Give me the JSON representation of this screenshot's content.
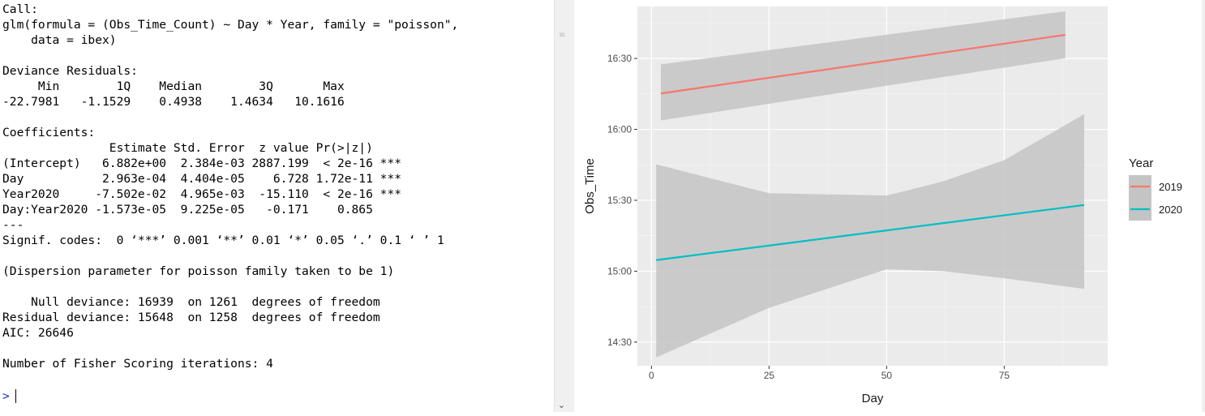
{
  "console": {
    "lines": [
      "Call:",
      "glm(formula = (Obs_Time_Count) ~ Day * Year, family = \"poisson\",",
      "    data = ibex)",
      "",
      "Deviance Residuals:",
      "     Min        1Q    Median        3Q       Max",
      "-22.7981   -1.1529    0.4938    1.4634   10.1616",
      "",
      "Coefficients:",
      "               Estimate Std. Error  z value Pr(>|z|)",
      "(Intercept)   6.882e+00  2.384e-03 2887.199  < 2e-16 ***",
      "Day           2.963e-04  4.404e-05    6.728 1.72e-11 ***",
      "Year2020     -7.502e-02  4.965e-03  -15.110  < 2e-16 ***",
      "Day:Year2020 -1.573e-05  9.225e-05   -0.171    0.865",
      "---",
      "Signif. codes:  0 ‘***’ 0.001 ‘**’ 0.01 ‘*’ 0.05 ‘.’ 0.1 ‘ ’ 1",
      "",
      "(Dispersion parameter for poisson family taken to be 1)",
      "",
      "    Null deviance: 16939  on 1261  degrees of freedom",
      "Residual deviance: 15648  on 1258  degrees of freedom",
      "AIC: 26646",
      "",
      "Number of Fisher Scoring iterations: 4"
    ],
    "prompt": ">"
  },
  "icons": {
    "scroll_down": "chevron-down-icon",
    "scroll_down_glyph": "⌄",
    "grip_glyph": "≡"
  },
  "colors": {
    "panel_bg": "#ebebeb",
    "grid_major": "#ffffff",
    "grid_minor": "#f5f5f5",
    "ribbon": "#c4c4c4",
    "series_2019": "#f8766d",
    "series_2020": "#00bfc4",
    "axis_text": "#4d4d4d",
    "title_text": "#1a1a1a"
  },
  "chart_data": {
    "type": "line",
    "title": "",
    "xlabel": "Day",
    "ylabel": "Obs_Time",
    "xlim": [
      -3,
      97
    ],
    "ylim_minutes": [
      860,
      1012
    ],
    "x_ticks": [
      0,
      25,
      50,
      75
    ],
    "y_ticks": [
      {
        "minutes": 870,
        "label": "14:30"
      },
      {
        "minutes": 900,
        "label": "15:00"
      },
      {
        "minutes": 930,
        "label": "15:30"
      },
      {
        "minutes": 960,
        "label": "16:00"
      },
      {
        "minutes": 990,
        "label": "16:30"
      }
    ],
    "legend": {
      "title": "Year",
      "position": "right"
    },
    "series": [
      {
        "name": "2019",
        "color": "#f8766d",
        "x": [
          2,
          88
        ],
        "fit": [
          975.2,
          1000.0
        ],
        "lower": [
          963.8,
          990.1
        ],
        "upper": [
          987.5,
          1010.0
        ]
      },
      {
        "name": "2020",
        "color": "#00bfc4",
        "x": [
          1,
          92
        ],
        "fit": [
          904.7,
          928.0
        ],
        "lower": [
          863.5,
          892.5
        ],
        "upper": [
          945.2,
          966.4
        ],
        "band_lower_mid": [
          [
            1,
            863.5
          ],
          [
            25,
            884.5
          ],
          [
            50,
            900.8
          ],
          [
            62,
            900.0
          ],
          [
            75,
            897.0
          ],
          [
            92,
            892.5
          ]
        ],
        "band_upper_mid": [
          [
            1,
            945.2
          ],
          [
            25,
            933.0
          ],
          [
            50,
            932.0
          ],
          [
            62,
            938.0
          ],
          [
            75,
            947.0
          ],
          [
            92,
            966.4
          ]
        ]
      }
    ]
  }
}
